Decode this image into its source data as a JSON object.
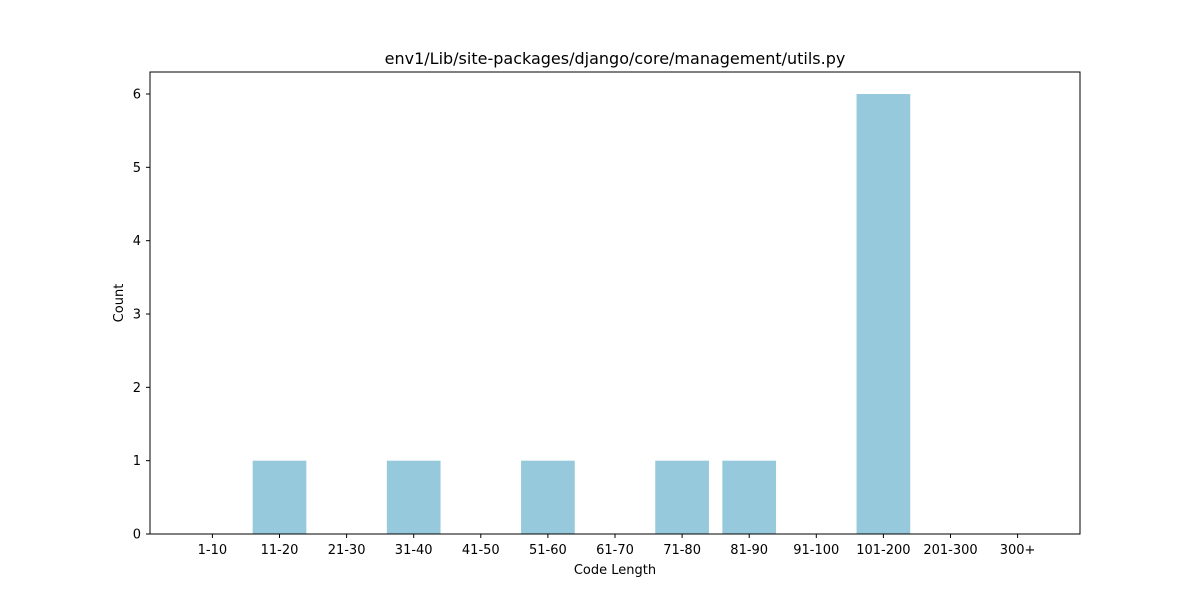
{
  "chart_data": {
    "type": "bar",
    "title": "env1/Lib/site-packages/django/core/management/utils.py",
    "xlabel": "Code Length",
    "ylabel": "Count",
    "categories": [
      "1-10",
      "11-20",
      "21-30",
      "31-40",
      "41-50",
      "51-60",
      "61-70",
      "71-80",
      "81-90",
      "91-100",
      "101-200",
      "201-300",
      "300+"
    ],
    "values": [
      0,
      1,
      0,
      1,
      0,
      1,
      0,
      1,
      1,
      0,
      6,
      0,
      0
    ],
    "ylim": [
      0,
      6.3
    ],
    "yticks": [
      0,
      1,
      2,
      3,
      4,
      5,
      6
    ],
    "grid": false,
    "bar_color": "#96c9dc"
  }
}
